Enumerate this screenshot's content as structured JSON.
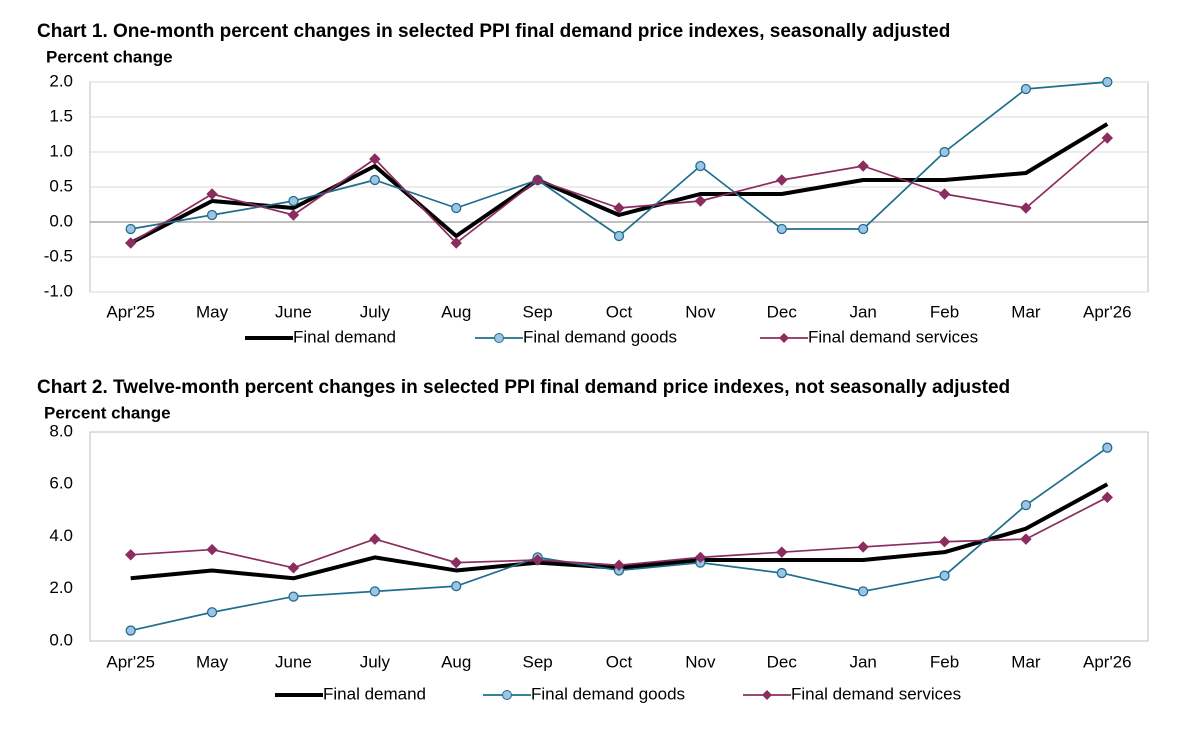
{
  "chart_data": [
    {
      "type": "line",
      "title": "Chart 1. One-month percent changes in selected PPI final demand price indexes, seasonally adjusted",
      "y_label": "Percent change",
      "categories": [
        "Apr'25",
        "May",
        "June",
        "July",
        "Aug",
        "Sep",
        "Oct",
        "Nov",
        "Dec",
        "Jan",
        "Feb",
        "Mar",
        "Apr'26"
      ],
      "series": [
        {
          "name": "Final demand",
          "color": "#000000",
          "marker": "none",
          "values": [
            -0.3,
            0.3,
            0.2,
            0.8,
            -0.2,
            0.6,
            0.1,
            0.4,
            0.4,
            0.6,
            0.6,
            0.7,
            1.4
          ]
        },
        {
          "name": "Final demand goods",
          "color": "#1f6e8c",
          "marker": "circle",
          "values": [
            -0.1,
            0.1,
            0.3,
            0.6,
            0.2,
            0.6,
            -0.2,
            0.8,
            -0.1,
            -0.1,
            1.0,
            1.9,
            2.0
          ]
        },
        {
          "name": "Final demand services",
          "color": "#8b2d5e",
          "marker": "diamond",
          "values": [
            -0.3,
            0.4,
            0.1,
            0.9,
            -0.3,
            0.6,
            0.2,
            0.3,
            0.6,
            0.8,
            0.4,
            0.2,
            1.2
          ]
        }
      ],
      "ylim": [
        -1.0,
        2.0
      ],
      "yticks": [
        {
          "value": -1.0,
          "label": "-1.0"
        },
        {
          "value": -0.5,
          "label": "-0.5"
        },
        {
          "value": 0,
          "label": "0.0"
        },
        {
          "value": 0.5,
          "label": "0.5"
        },
        {
          "value": 1.0,
          "label": "1.0"
        },
        {
          "value": 1.5,
          "label": "1.5"
        },
        {
          "value": 2.0,
          "label": "2.0"
        }
      ],
      "grid": true,
      "legend": "bottom"
    },
    {
      "type": "line",
      "title": "Chart 2. Twelve-month percent changes in selected PPI final demand price indexes, not seasonally adjusted",
      "y_label": "Percent change",
      "categories": [
        "Apr'25",
        "May",
        "June",
        "July",
        "Aug",
        "Sep",
        "Oct",
        "Nov",
        "Dec",
        "Jan",
        "Feb",
        "Mar",
        "Apr'26"
      ],
      "series": [
        {
          "name": "Final demand",
          "color": "#000000",
          "marker": "none",
          "values": [
            2.4,
            2.7,
            2.4,
            3.2,
            2.7,
            3.0,
            2.8,
            3.1,
            3.1,
            3.1,
            3.4,
            4.3,
            6.0
          ]
        },
        {
          "name": "Final demand goods",
          "color": "#1f6e8c",
          "marker": "circle",
          "values": [
            0.4,
            1.1,
            1.7,
            1.9,
            2.1,
            3.2,
            2.7,
            3.0,
            2.6,
            1.9,
            2.5,
            5.2,
            7.4
          ]
        },
        {
          "name": "Final demand services",
          "color": "#8b2d5e",
          "marker": "diamond",
          "values": [
            3.3,
            3.5,
            2.8,
            3.9,
            3.0,
            3.1,
            2.9,
            3.2,
            3.4,
            3.6,
            3.8,
            3.9,
            5.5
          ]
        }
      ],
      "ylim": [
        0,
        8.0
      ],
      "yticks": [
        {
          "value": 0,
          "label": "0.0"
        },
        {
          "value": 2.0,
          "label": "2.0"
        },
        {
          "value": 4.0,
          "label": "4.0"
        },
        {
          "value": 6.0,
          "label": "6.0"
        },
        {
          "value": 8.0,
          "label": "8.0"
        }
      ],
      "grid": false,
      "legend": "bottom"
    }
  ]
}
